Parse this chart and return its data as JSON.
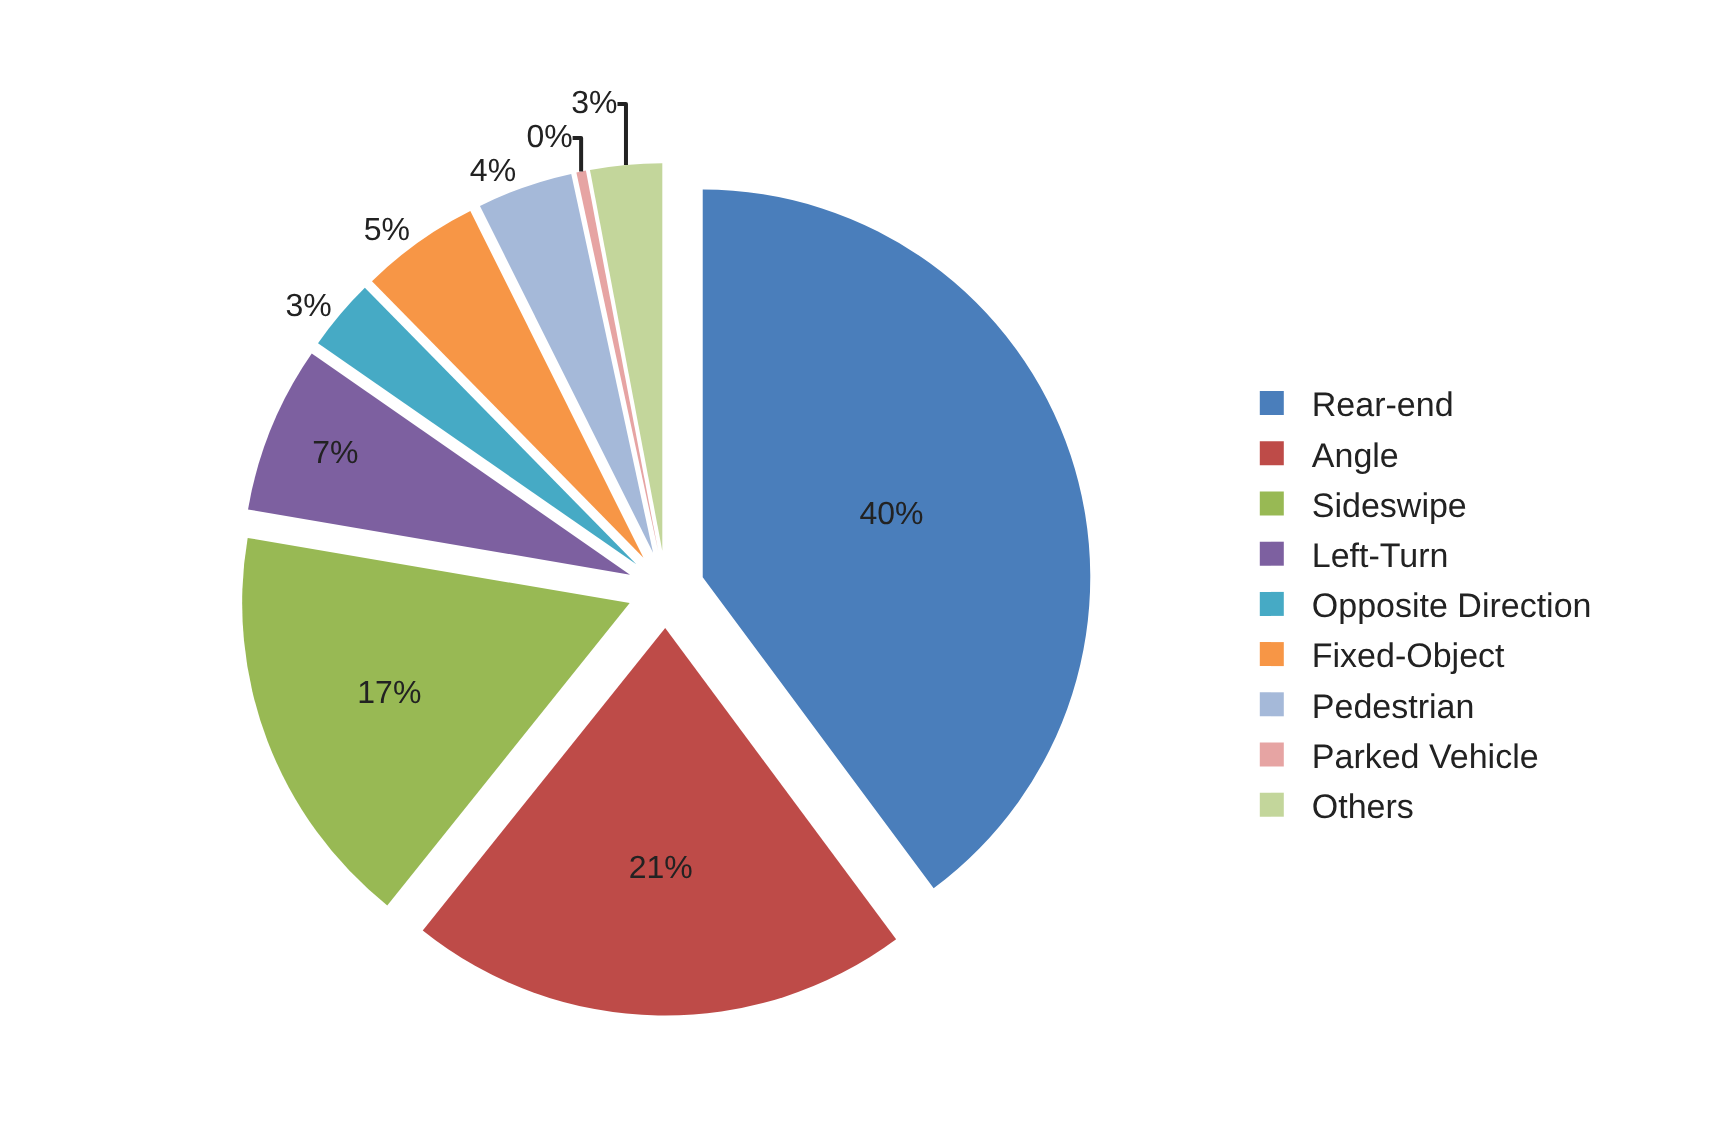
{
  "chart_data": {
    "type": "pie",
    "categories": [
      "Rear-end",
      "Angle",
      "Sideswipe",
      "Left-Turn",
      "Opposite Direction",
      "Fixed-Object",
      "Pedestrian",
      "Parked Vehicle",
      "Others"
    ],
    "values": [
      40,
      21,
      17,
      7,
      3,
      5,
      4,
      0.4,
      3
    ],
    "value_labels": [
      "40%",
      "21%",
      "17%",
      "7%",
      "3%",
      "5%",
      "4%",
      "0%",
      "3%"
    ],
    "colors": [
      "#4a7ebb",
      "#be4b48",
      "#98b954",
      "#7d60a0",
      "#46aac5",
      "#f79646",
      "#a5b9d9",
      "#e6a4a3",
      "#c3d69b"
    ],
    "legend": "right"
  }
}
